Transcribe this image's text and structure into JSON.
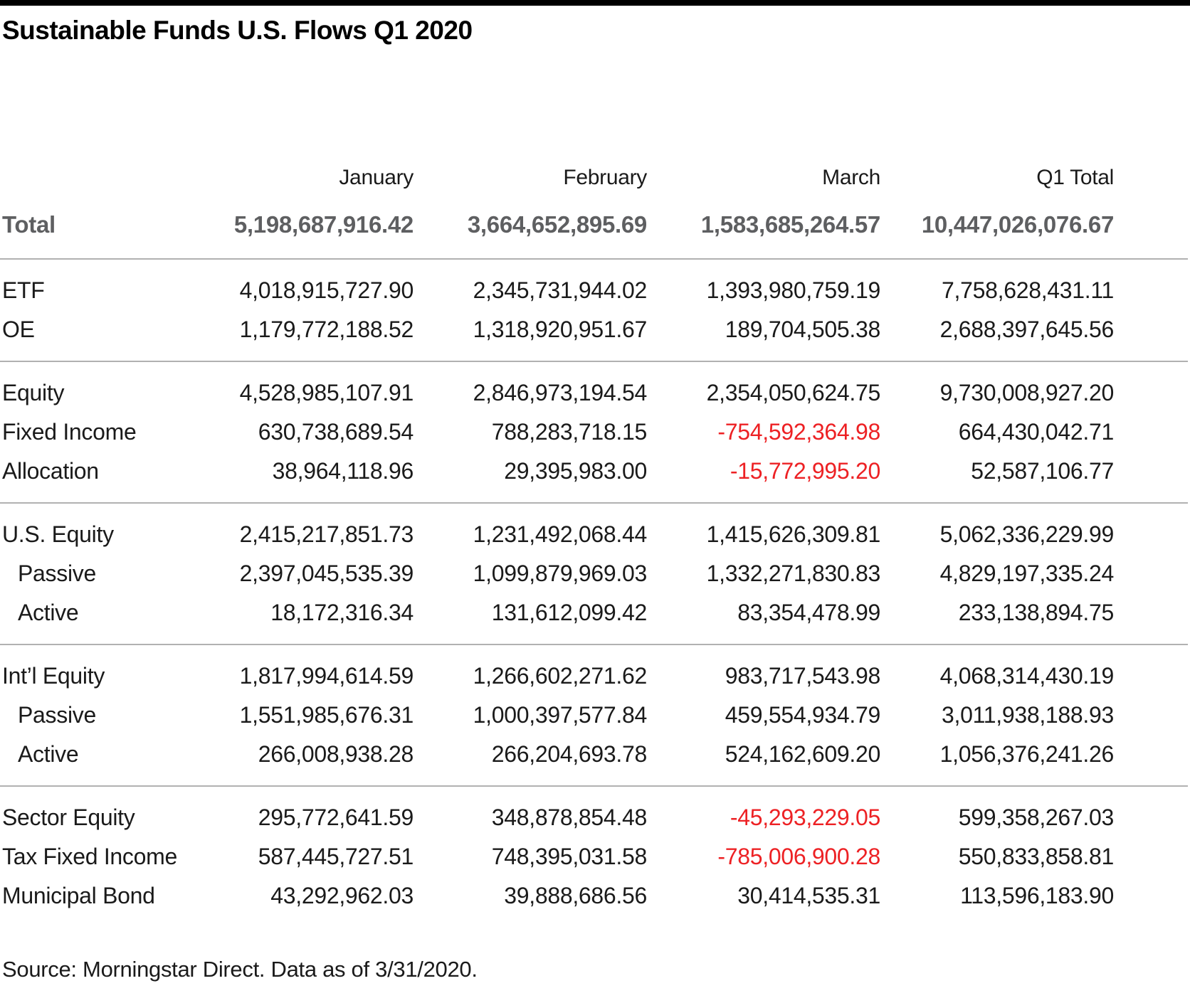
{
  "chart_data": {
    "type": "table",
    "title": "Sustainable Funds U.S. Flows Q1 2020",
    "columns": [
      "January",
      "February",
      "March",
      "Q1 Total"
    ],
    "total_row": {
      "label": "Total",
      "values": [
        "5,198,687,916.42",
        "3,664,652,895.69",
        "1,583,685,264.57",
        "10,447,026,076.67"
      ]
    },
    "groups": [
      {
        "rows": [
          {
            "label": "ETF",
            "values": [
              "4,018,915,727.90",
              "2,345,731,944.02",
              "1,393,980,759.19",
              "7,758,628,431.11"
            ]
          },
          {
            "label": "OE",
            "values": [
              "1,179,772,188.52",
              "1,318,920,951.67",
              "189,704,505.38",
              "2,688,397,645.56"
            ]
          }
        ]
      },
      {
        "rows": [
          {
            "label": "Equity",
            "values": [
              "4,528,985,107.91",
              "2,846,973,194.54",
              "2,354,050,624.75",
              "9,730,008,927.20"
            ]
          },
          {
            "label": "Fixed Income",
            "values": [
              "630,738,689.54",
              "788,283,718.15",
              "-754,592,364.98",
              "664,430,042.71"
            ]
          },
          {
            "label": "Allocation",
            "values": [
              "38,964,118.96",
              "29,395,983.00",
              "-15,772,995.20",
              "52,587,106.77"
            ]
          }
        ]
      },
      {
        "rows": [
          {
            "label": "U.S. Equity",
            "values": [
              "2,415,217,851.73",
              "1,231,492,068.44",
              "1,415,626,309.81",
              "5,062,336,229.99"
            ]
          },
          {
            "label": "Passive",
            "values": [
              "2,397,045,535.39",
              "1,099,879,969.03",
              "1,332,271,830.83",
              "4,829,197,335.24"
            ]
          },
          {
            "label": "Active",
            "values": [
              "18,172,316.34",
              "131,612,099.42",
              "83,354,478.99",
              "233,138,894.75"
            ]
          }
        ]
      },
      {
        "rows": [
          {
            "label": "Int’l Equity",
            "values": [
              "1,817,994,614.59",
              "1,266,602,271.62",
              "983,717,543.98",
              "4,068,314,430.19"
            ]
          },
          {
            "label": "Passive",
            "values": [
              "1,551,985,676.31",
              "1,000,397,577.84",
              "459,554,934.79",
              "3,011,938,188.93"
            ]
          },
          {
            "label": "Active",
            "values": [
              "266,008,938.28",
              "266,204,693.78",
              "524,162,609.20",
              "1,056,376,241.26"
            ]
          }
        ]
      },
      {
        "rows": [
          {
            "label": "Sector Equity",
            "values": [
              "295,772,641.59",
              "348,878,854.48",
              "-45,293,229.05",
              "599,358,267.03"
            ]
          },
          {
            "label": "Tax Fixed Income",
            "values": [
              "587,445,727.51",
              "748,395,031.58",
              "-785,006,900.28",
              "550,833,858.81"
            ]
          },
          {
            "label": "Municipal Bond",
            "values": [
              "43,292,962.03",
              "39,888,686.56",
              "30,414,535.31",
              "113,596,183.90"
            ]
          }
        ]
      }
    ],
    "source": "Source: Morningstar Direct. Data as of 3/31/2020.",
    "layout": {
      "grid": "horizontal-group-separators",
      "negative_value_color": "#ed2124",
      "total_row_color": "#5e5f61",
      "accent_bar_color": "#000000"
    }
  }
}
